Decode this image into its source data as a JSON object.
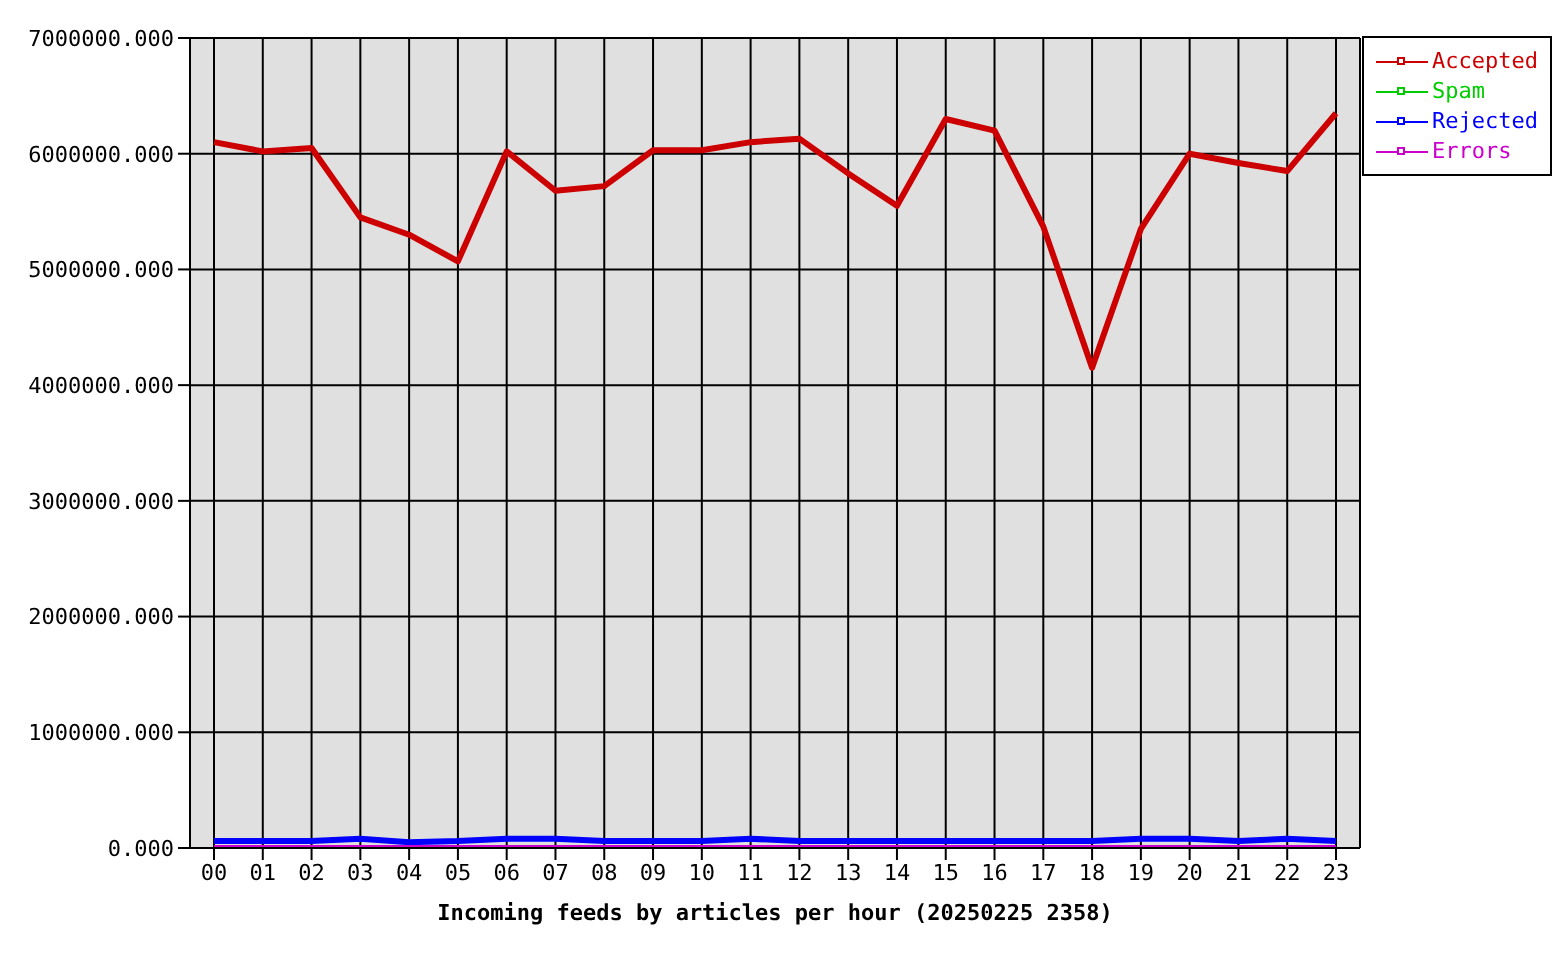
{
  "chart_data": {
    "type": "line",
    "xlabel": "Incoming feeds by articles per hour (20250225 2358)",
    "categories": [
      "00",
      "01",
      "02",
      "03",
      "04",
      "05",
      "06",
      "07",
      "08",
      "09",
      "10",
      "11",
      "12",
      "13",
      "14",
      "15",
      "16",
      "17",
      "18",
      "19",
      "20",
      "21",
      "22",
      "23"
    ],
    "series": [
      {
        "name": "Accepted",
        "color": "#cc0000",
        "values": [
          6100000,
          6020000,
          6050000,
          5450000,
          5300000,
          5070000,
          6020000,
          5680000,
          5720000,
          6030000,
          6030000,
          6100000,
          6130000,
          5830000,
          5550000,
          6300000,
          6200000,
          5370000,
          4150000,
          5350000,
          6000000,
          5920000,
          5850000,
          6350000
        ]
      },
      {
        "name": "Spam",
        "color": "#00cc00",
        "values": [
          null,
          null,
          null,
          null,
          null,
          null,
          null,
          null,
          null,
          null,
          null,
          null,
          null,
          null,
          null,
          null,
          null,
          null,
          null,
          null,
          null,
          null,
          null,
          null
        ]
      },
      {
        "name": "Rejected",
        "color": "#0000ff",
        "values": [
          60000,
          60000,
          60000,
          80000,
          50000,
          60000,
          80000,
          80000,
          60000,
          60000,
          60000,
          80000,
          60000,
          60000,
          60000,
          60000,
          60000,
          60000,
          60000,
          80000,
          80000,
          60000,
          80000,
          60000
        ]
      },
      {
        "name": "Errors",
        "color": "#cc00cc",
        "values": [
          0,
          0,
          0,
          0,
          0,
          0,
          0,
          0,
          0,
          0,
          0,
          0,
          0,
          0,
          0,
          0,
          0,
          0,
          0,
          0,
          0,
          0,
          0,
          0
        ]
      }
    ],
    "ylim": [
      0,
      7000000
    ],
    "yticks": [
      {
        "value": 0,
        "label": "0.000"
      },
      {
        "value": 1000000,
        "label": "1000000.000"
      },
      {
        "value": 2000000,
        "label": "2000000.000"
      },
      {
        "value": 3000000,
        "label": "3000000.000"
      },
      {
        "value": 4000000,
        "label": "4000000.000"
      },
      {
        "value": 5000000,
        "label": "5000000.000"
      },
      {
        "value": 6000000,
        "label": "6000000.000"
      },
      {
        "value": 7000000,
        "label": "7000000.000"
      }
    ],
    "grid": true,
    "legend": "top right",
    "marker": "none",
    "line_style": "solid"
  }
}
